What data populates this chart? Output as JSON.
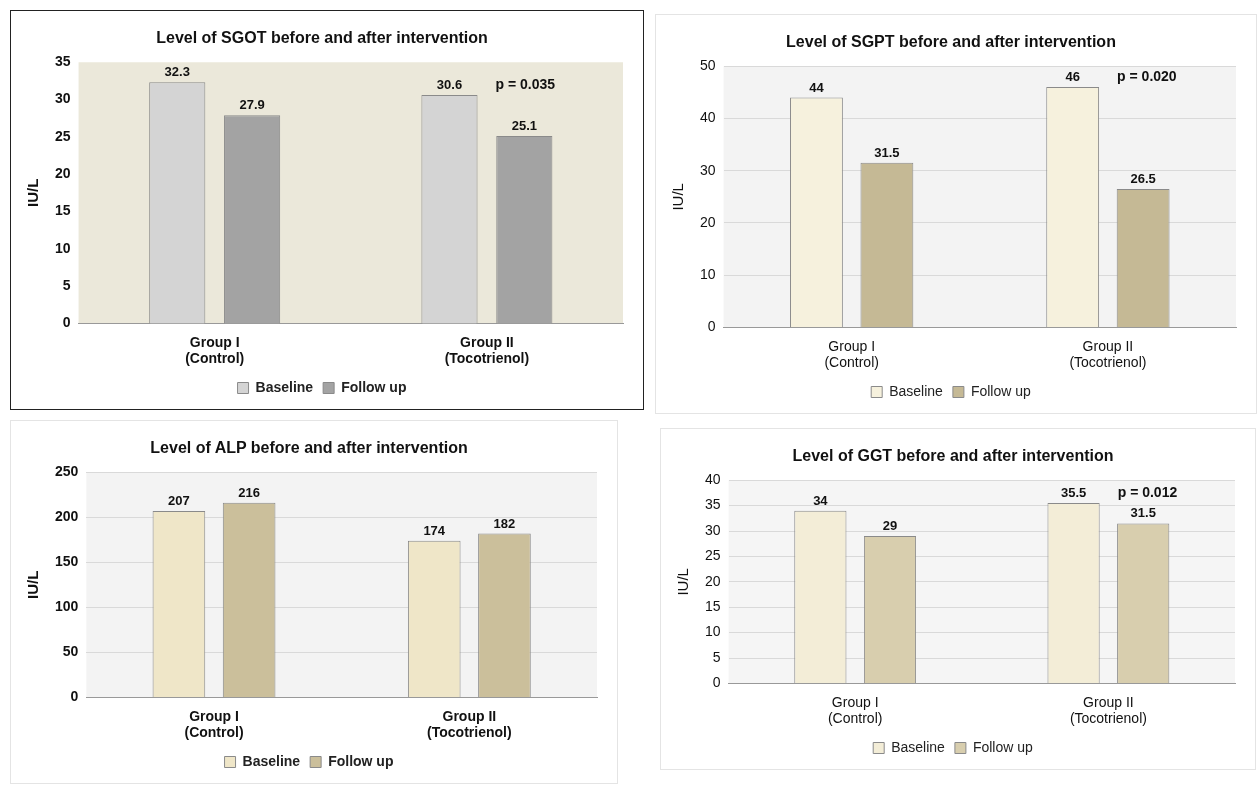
{
  "chart_data": [
    {
      "type": "bar",
      "title": "Level of SGOT before and after intervention",
      "ylabel": "IU/L",
      "categories": [
        "Group I\n(Control)",
        "Group II\n(Tocotrienol)"
      ],
      "series": [
        {
          "name": "Baseline",
          "color": "#d4d4d4",
          "values": [
            32.3,
            30.6
          ]
        },
        {
          "name": "Follow up",
          "color": "#a3a3a3",
          "values": [
            27.9,
            25.1
          ]
        }
      ],
      "ylim": [
        0,
        35
      ],
      "yticks": [
        0,
        5,
        10,
        15,
        20,
        25,
        30,
        35
      ],
      "grid": false,
      "legend": "bottom",
      "data_labels": true,
      "annotations": [
        "p = 0.035"
      ]
    },
    {
      "type": "bar",
      "title": "Level of SGPT before and after intervention",
      "ylabel": "IU/L",
      "categories": [
        "Group I\n(Control)",
        "Group II\n(Tocotrienol)"
      ],
      "series": [
        {
          "name": "Baseline",
          "color": "#f6f1dd",
          "values": [
            44,
            46
          ]
        },
        {
          "name": "Follow up",
          "color": "#c5b995",
          "values": [
            31.5,
            26.5
          ]
        }
      ],
      "ylim": [
        0,
        50
      ],
      "yticks": [
        0,
        10,
        20,
        30,
        40,
        50
      ],
      "grid": "y",
      "legend": "bottom",
      "data_labels": true,
      "annotations": [
        "p = 0.020"
      ]
    },
    {
      "type": "bar",
      "title": "Level of ALP before and after intervention",
      "ylabel": "IU/L",
      "categories": [
        "Group I\n(Control)",
        "Group II\n(Tocotrienol)"
      ],
      "series": [
        {
          "name": "Baseline",
          "color": "#efe6c8",
          "values": [
            207,
            174
          ]
        },
        {
          "name": "Follow up",
          "color": "#cbbf9b",
          "values": [
            216,
            182
          ]
        }
      ],
      "ylim": [
        0,
        250
      ],
      "yticks": [
        0,
        50,
        100,
        150,
        200,
        250
      ],
      "grid": "y",
      "legend": "bottom",
      "data_labels": true
    },
    {
      "type": "bar",
      "title": "Level of GGT before and after intervention",
      "ylabel": "IU/L",
      "categories": [
        "Group I\n(Control)",
        "Group II\n(Tocotrienol)"
      ],
      "series": [
        {
          "name": "Baseline",
          "color": "#f3edd7",
          "values": [
            34,
            35.5
          ]
        },
        {
          "name": "Follow up",
          "color": "#d8ceae",
          "values": [
            29,
            31.5
          ]
        }
      ],
      "ylim": [
        0,
        40
      ],
      "yticks": [
        0,
        5,
        10,
        15,
        20,
        25,
        30,
        35,
        40
      ],
      "grid": "y",
      "legend": "bottom",
      "data_labels": true,
      "annotations": [
        "p = 0.012"
      ]
    }
  ]
}
